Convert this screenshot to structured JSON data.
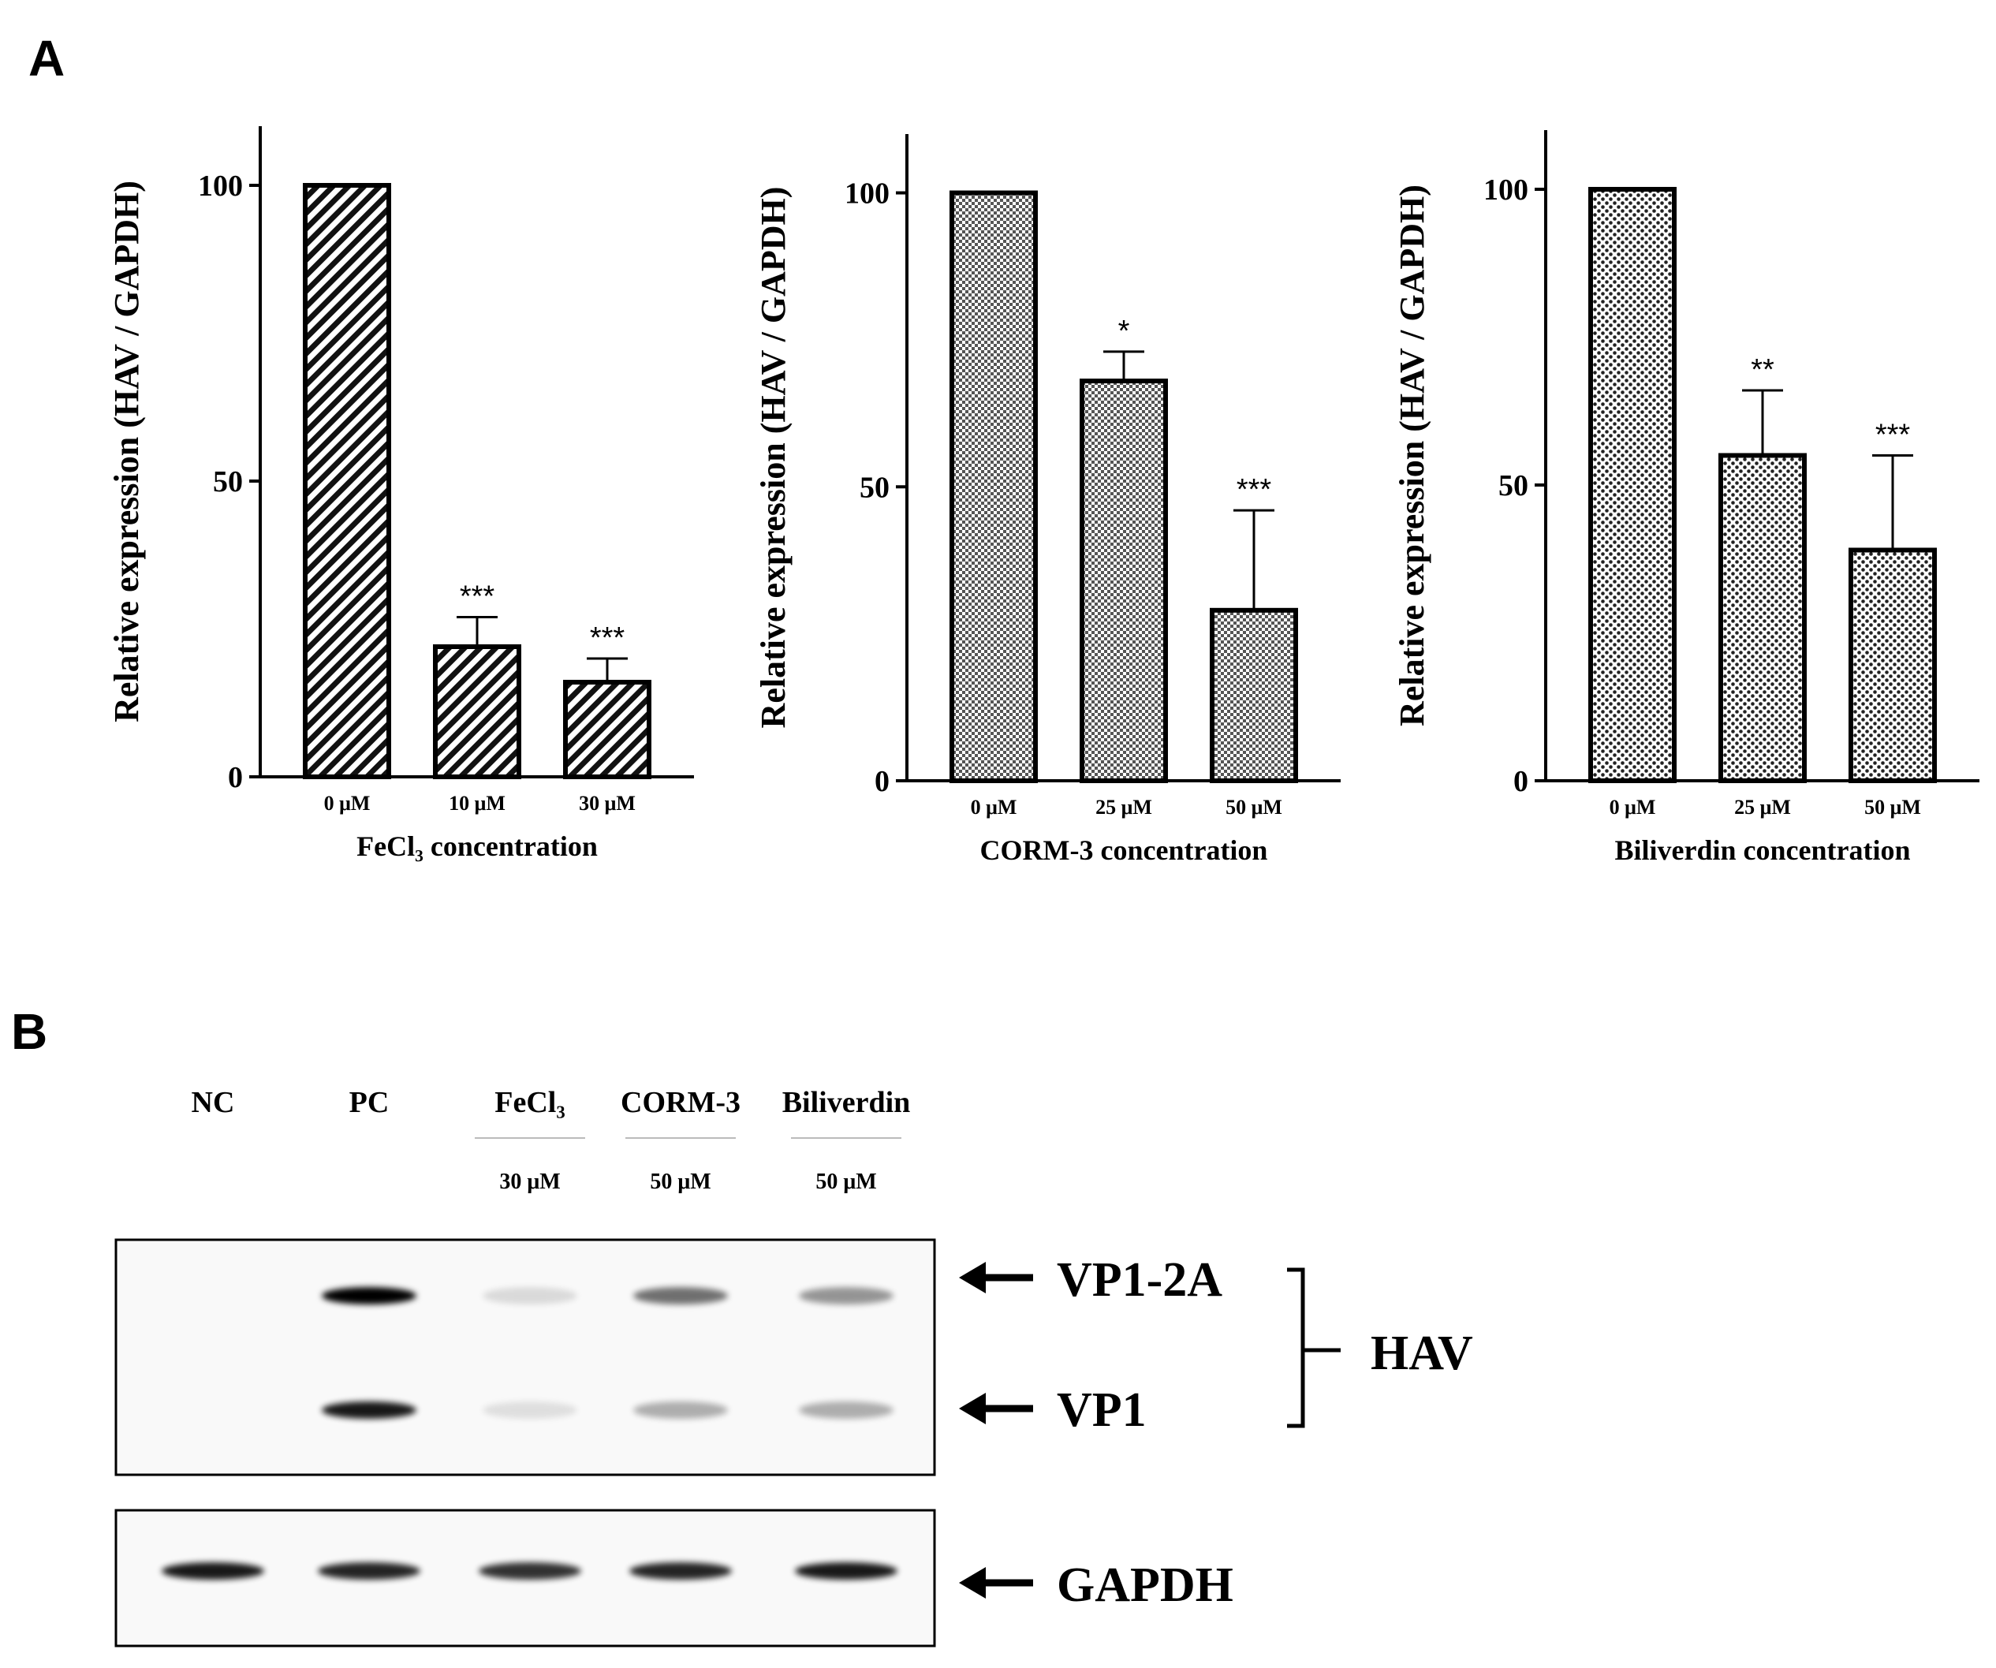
{
  "panels": {
    "a": "A",
    "b": "B"
  },
  "chart_data": [
    {
      "type": "bar",
      "categories": [
        "0 μM",
        "10 μM",
        "30 μM"
      ],
      "values": [
        100,
        22,
        16
      ],
      "error": [
        0,
        5,
        4
      ],
      "significance": [
        "",
        "***",
        "***"
      ],
      "xlabel": "FeCl₃ concentration",
      "ylabel": "Relative expression (HAV / GAPDH)",
      "yticks": [
        "0",
        "50",
        "100"
      ],
      "ylim": [
        0,
        110
      ],
      "pattern": "diagonal-hatch"
    },
    {
      "type": "bar",
      "categories": [
        "0 μM",
        "25 μM",
        "50 μM"
      ],
      "values": [
        100,
        68,
        29
      ],
      "error": [
        0,
        5,
        17
      ],
      "significance": [
        "",
        "*",
        "***"
      ],
      "xlabel": "CORM-3 concentration",
      "ylabel": "Relative expression (HAV / GAPDH)",
      "yticks": [
        "0",
        "50",
        "100"
      ],
      "ylim": [
        0,
        110
      ],
      "pattern": "checker"
    },
    {
      "type": "bar",
      "categories": [
        "0 μM",
        "25 μM",
        "50 μM"
      ],
      "values": [
        100,
        55,
        39
      ],
      "error": [
        0,
        11,
        16
      ],
      "significance": [
        "",
        "**",
        "***"
      ],
      "xlabel": "Biliverdin concentration",
      "ylabel": "Relative expression (HAV / GAPDH)",
      "yticks": [
        "0",
        "50",
        "100"
      ],
      "ylim": [
        0,
        110
      ],
      "pattern": "dots"
    }
  ],
  "blot": {
    "lanes": [
      "NC",
      "PC",
      "FeCl₃",
      "CORM-3",
      "Biliverdin"
    ],
    "concentrations": [
      "30 μM",
      "50 μM",
      "50 μM"
    ],
    "bands": {
      "vp12a": "VP1-2A",
      "vp1": "VP1",
      "gapdh": "GAPDH",
      "group": "HAV"
    },
    "intensity_vp12a": [
      0,
      1.0,
      0.12,
      0.55,
      0.4
    ],
    "intensity_vp1": [
      0,
      0.9,
      0.1,
      0.3,
      0.3
    ],
    "intensity_gapdh": [
      0.9,
      0.85,
      0.8,
      0.85,
      0.9
    ]
  }
}
